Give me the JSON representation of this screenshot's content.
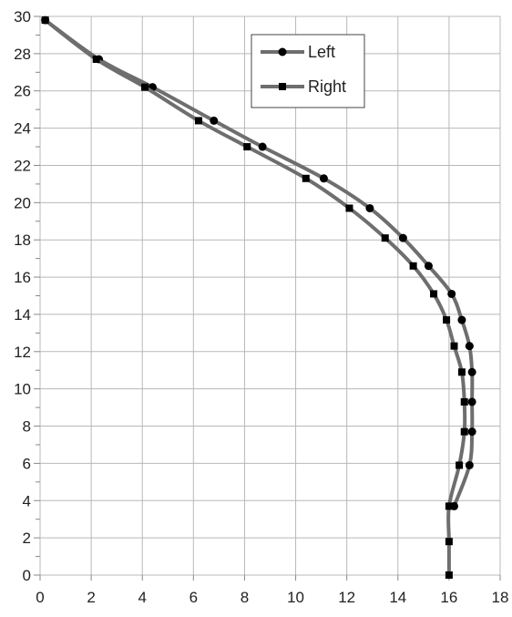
{
  "chart_data": {
    "type": "line",
    "xlim": [
      0,
      18
    ],
    "ylim": [
      0,
      30
    ],
    "x_ticks": [
      "0",
      "2",
      "4",
      "6",
      "8",
      "10",
      "12",
      "14",
      "16",
      "18"
    ],
    "y_ticks": [
      "0",
      "2",
      "4",
      "6",
      "8",
      "10",
      "12",
      "14",
      "16",
      "18",
      "20",
      "22",
      "24",
      "26",
      "28",
      "30"
    ],
    "grid": "horizontal",
    "legend_position": "top-center",
    "line_color": "#6e6e6e",
    "marker_color": "#000000",
    "series": [
      {
        "name": "Left",
        "marker": "circle",
        "points": [
          [
            0.2,
            29.8
          ],
          [
            2.3,
            27.7
          ],
          [
            4.4,
            26.2
          ],
          [
            6.8,
            24.4
          ],
          [
            8.7,
            23.0
          ],
          [
            11.1,
            21.3
          ],
          [
            12.9,
            19.7
          ],
          [
            14.2,
            18.1
          ],
          [
            15.2,
            16.6
          ],
          [
            16.1,
            15.1
          ],
          [
            16.5,
            13.7
          ],
          [
            16.8,
            12.3
          ],
          [
            16.9,
            10.9
          ],
          [
            16.9,
            9.3
          ],
          [
            16.9,
            7.7
          ],
          [
            16.8,
            5.9
          ],
          [
            16.2,
            3.7
          ]
        ]
      },
      {
        "name": "Right",
        "marker": "square",
        "points": [
          [
            0.2,
            29.8
          ],
          [
            2.2,
            27.7
          ],
          [
            4.1,
            26.2
          ],
          [
            6.2,
            24.4
          ],
          [
            8.1,
            23.0
          ],
          [
            10.4,
            21.3
          ],
          [
            12.1,
            19.7
          ],
          [
            13.5,
            18.1
          ],
          [
            14.6,
            16.6
          ],
          [
            15.4,
            15.1
          ],
          [
            15.9,
            13.7
          ],
          [
            16.2,
            12.3
          ],
          [
            16.5,
            10.9
          ],
          [
            16.6,
            9.3
          ],
          [
            16.6,
            7.7
          ],
          [
            16.4,
            5.9
          ],
          [
            16.0,
            3.7
          ],
          [
            16.0,
            1.8
          ],
          [
            16.0,
            0.0
          ]
        ]
      }
    ]
  }
}
